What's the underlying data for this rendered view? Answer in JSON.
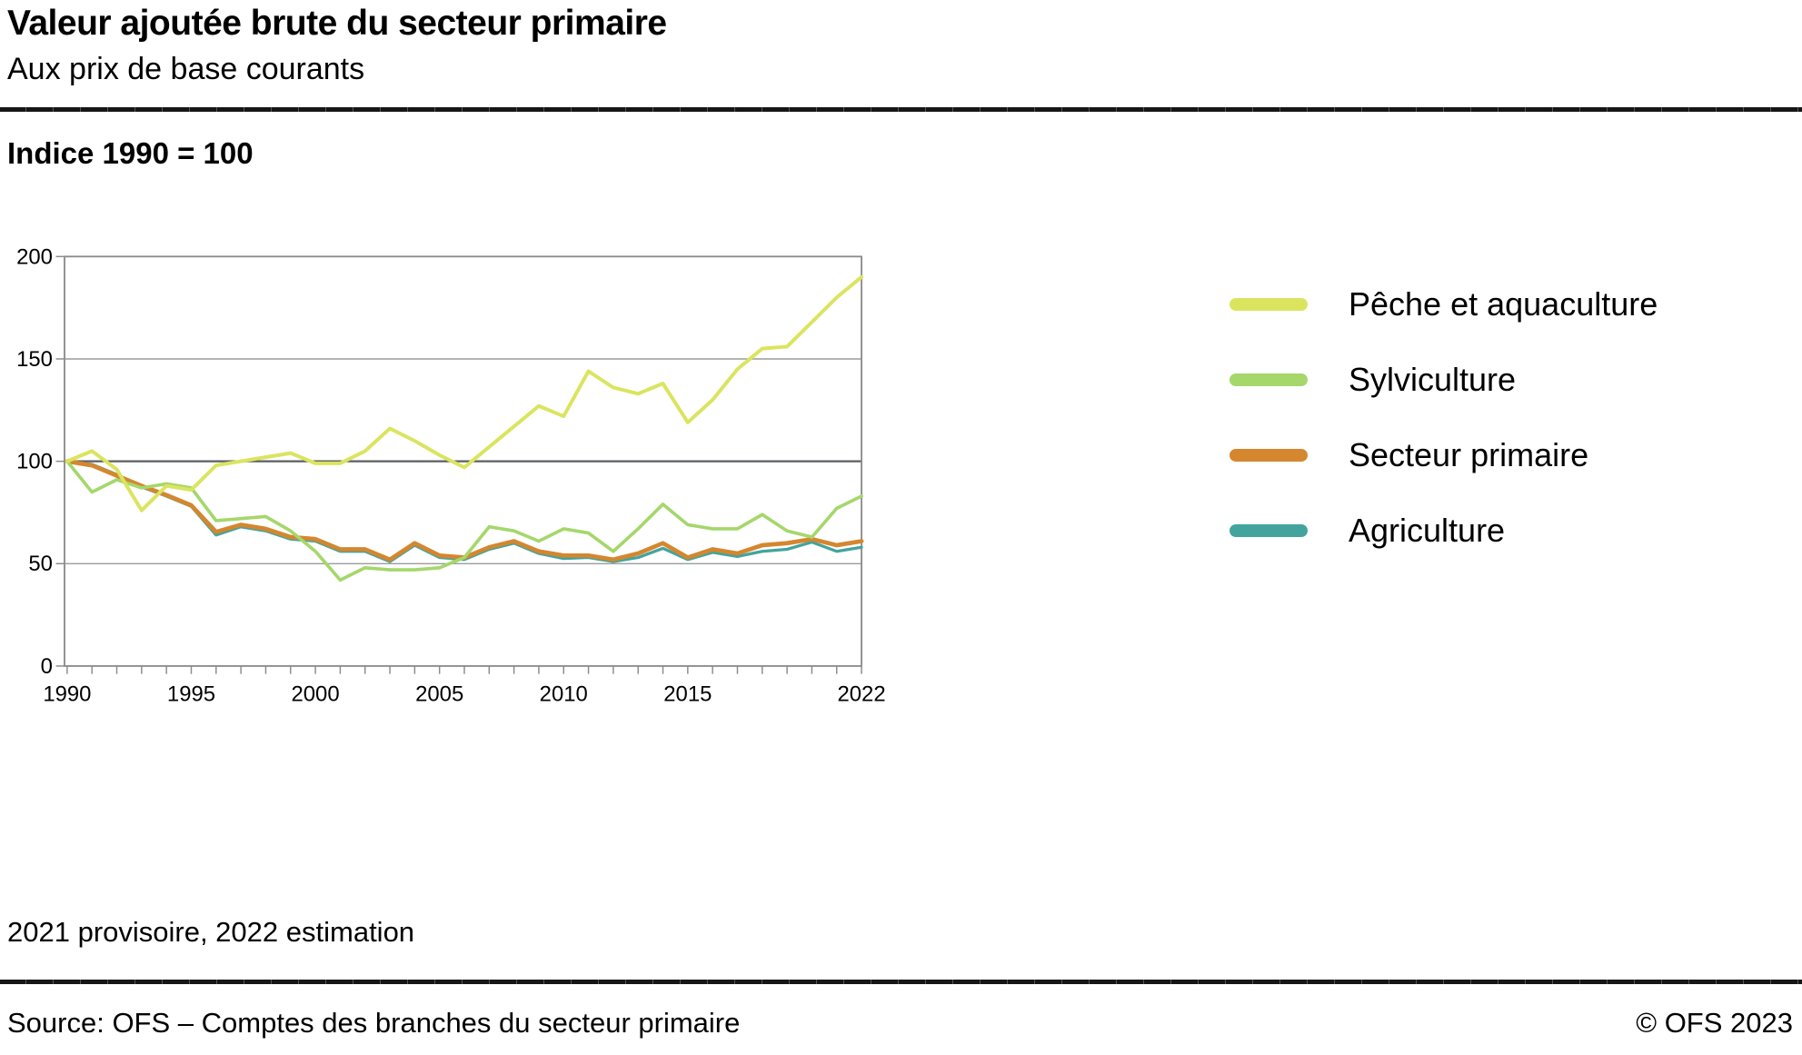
{
  "header": {
    "title": "Valeur ajoutée brute du secteur primaire",
    "subtitle": "Aux prix de base courants"
  },
  "indice_label": "Indice 1990 = 100",
  "footnote": "2021 provisoire, 2022 estimation",
  "footer": {
    "source": "Source: OFS – Comptes des branches du secteur primaire",
    "copyright": "© OFS 2023"
  },
  "colors": {
    "peche": "#dbe45f",
    "sylviculture": "#a5d76b",
    "secteur_primaire": "#d4872f",
    "agriculture": "#43a49e",
    "grid": "#9b9b9b",
    "baseline": "#5b5e61",
    "frame": "#8a8a8a",
    "text": "#000000"
  },
  "chart_data": {
    "type": "line",
    "title": "Valeur ajoutée brute du secteur primaire",
    "subtitle": "Aux prix de base courants",
    "ylabel": "Indice 1990 = 100",
    "xlabel": "",
    "ylim": [
      0,
      200
    ],
    "yticks": [
      0,
      50,
      100,
      150,
      200
    ],
    "baseline_value": 100,
    "grid": true,
    "legend_position": "right",
    "xlim": [
      1990,
      2022
    ],
    "xtick_interval": 1,
    "xtick_labels": [
      1990,
      1995,
      2000,
      2005,
      2010,
      2015,
      2022
    ],
    "x": [
      1990,
      1991,
      1992,
      1993,
      1994,
      1995,
      1996,
      1997,
      1998,
      1999,
      2000,
      2001,
      2002,
      2003,
      2004,
      2005,
      2006,
      2007,
      2008,
      2009,
      2010,
      2011,
      2012,
      2013,
      2014,
      2015,
      2016,
      2017,
      2018,
      2019,
      2020,
      2021,
      2022
    ],
    "series": [
      {
        "name": "Pêche et aquaculture",
        "color": "#dbe45f",
        "stroke_width": 5.5,
        "values": [
          100,
          105,
          96,
          76,
          88,
          86,
          98,
          100,
          102,
          104,
          99,
          99,
          105,
          116,
          110,
          103,
          97,
          107,
          117,
          127,
          122,
          144,
          136,
          133,
          138,
          119,
          130,
          145,
          155,
          156,
          168,
          180,
          190
        ]
      },
      {
        "name": "Sylviculture",
        "color": "#a5d76b",
        "stroke_width": 5,
        "values": [
          100,
          85,
          91,
          87,
          89,
          87,
          71,
          72,
          73,
          66,
          56,
          42,
          48,
          47,
          47,
          48,
          53,
          68,
          66,
          61,
          67,
          65,
          56,
          67,
          79,
          69,
          67,
          67,
          74,
          66,
          63,
          77,
          83
        ]
      },
      {
        "name": "Secteur primaire",
        "color": "#d4872f",
        "stroke_width": 6.5,
        "values": [
          100,
          98,
          93,
          88,
          83.5,
          78.5,
          65.5,
          69,
          67,
          63,
          62,
          57,
          57,
          52,
          60,
          54,
          53,
          58,
          61,
          56,
          54,
          54,
          52,
          55,
          60,
          53,
          57,
          55,
          59,
          60,
          62,
          59,
          61
        ]
      },
      {
        "name": "Agriculture",
        "color": "#43a49e",
        "stroke_width": 4.5,
        "values": [
          100,
          98.5,
          93.5,
          87.5,
          83,
          78,
          64,
          68,
          66,
          62,
          61,
          56,
          56,
          51,
          59,
          53,
          52,
          57,
          60,
          55,
          52.5,
          53,
          51,
          53,
          57.5,
          52,
          55.5,
          53.5,
          56,
          57,
          60.5,
          56,
          58
        ]
      }
    ]
  }
}
